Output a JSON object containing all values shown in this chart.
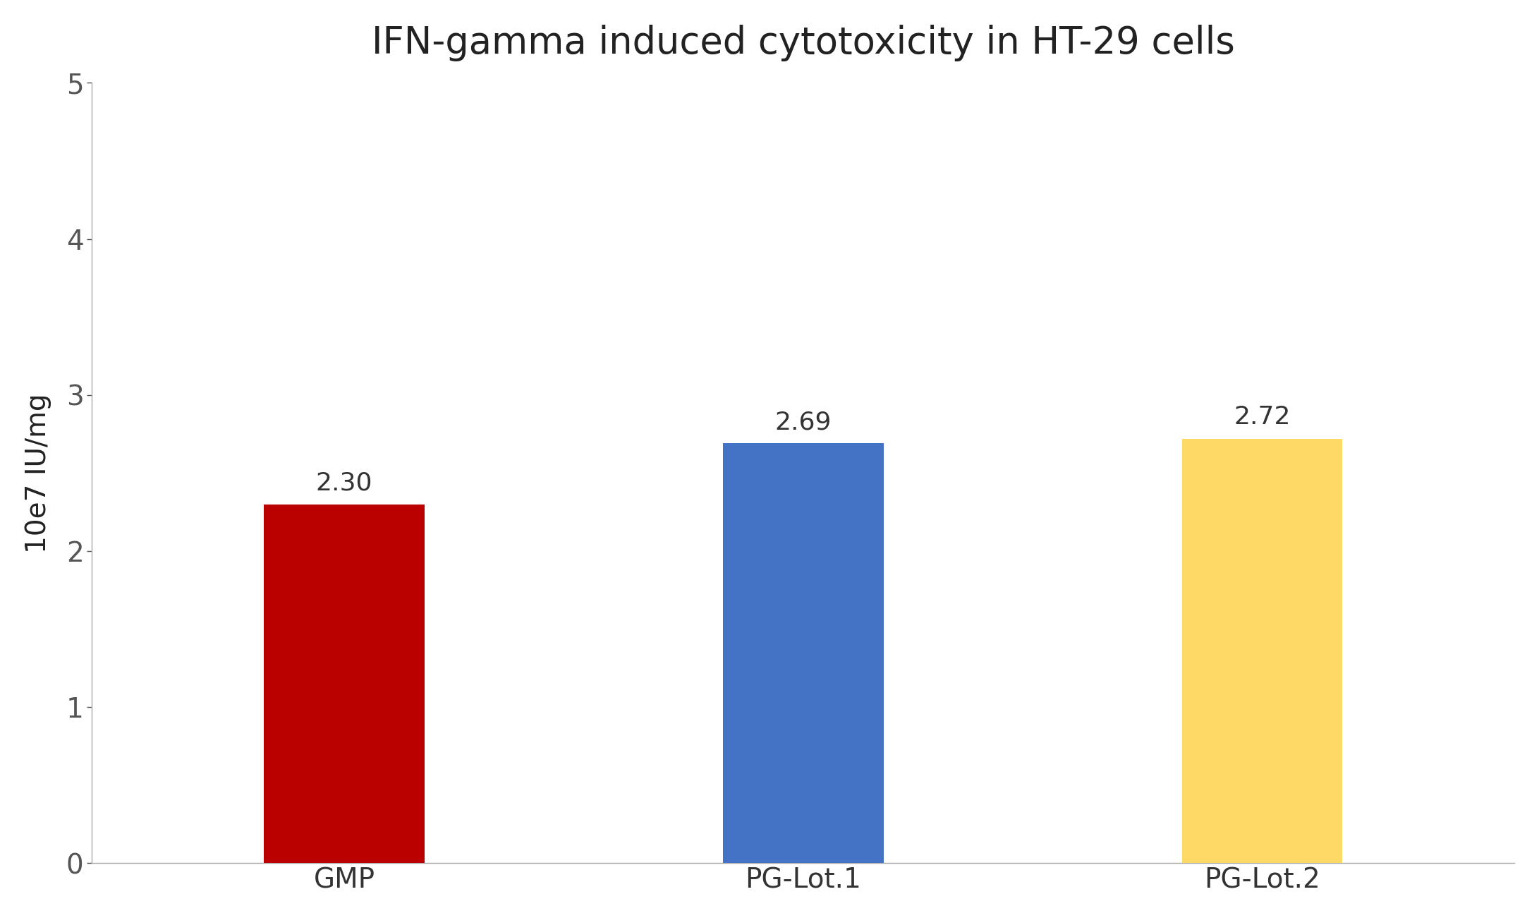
{
  "title": "IFN-gamma induced cytotoxicity in HT-29 cells",
  "categories": [
    "GMP",
    "PG-Lot.1",
    "PG-Lot.2"
  ],
  "values": [
    2.3,
    2.69,
    2.72
  ],
  "bar_colors": [
    "#bb0000",
    "#4472c4",
    "#ffd966"
  ],
  "ylabel": "10e7 IU/mg",
  "ylim": [
    0,
    5
  ],
  "yticks": [
    0,
    1,
    2,
    3,
    4,
    5
  ],
  "bar_labels": [
    "2.30",
    "2.69",
    "2.72"
  ],
  "title_fontsize": 38,
  "label_fontsize": 28,
  "tick_fontsize": 28,
  "bar_label_fontsize": 26,
  "background_color": "#ffffff",
  "bar_width": 0.35,
  "dpi": 100,
  "fig_width": 21.82,
  "fig_height": 13.01
}
